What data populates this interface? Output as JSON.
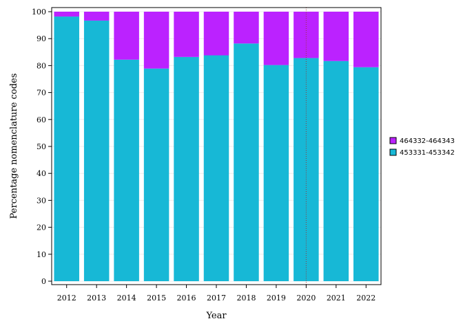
{
  "chart_data": {
    "type": "bar",
    "stacked": true,
    "xlabel": "Year",
    "ylabel": "Percentage nomenclature codes",
    "ylim": [
      0,
      100
    ],
    "yticks": [
      0,
      10,
      20,
      30,
      40,
      50,
      60,
      70,
      80,
      90,
      100
    ],
    "categories": [
      "2012",
      "2013",
      "2014",
      "2015",
      "2016",
      "2017",
      "2018",
      "2019",
      "2020",
      "2021",
      "2022"
    ],
    "series": [
      {
        "name": "453331-453342",
        "color": "#17b8d6",
        "values": [
          98.2,
          96.7,
          82.2,
          78.9,
          83.2,
          83.8,
          88.2,
          80.2,
          82.8,
          81.7,
          79.4
        ]
      },
      {
        "name": "464332-464343",
        "color": "#bb22ff",
        "values": [
          1.8,
          3.3,
          17.8,
          21.1,
          16.8,
          16.2,
          11.8,
          19.8,
          17.2,
          18.3,
          20.6
        ]
      }
    ],
    "legend_position": "right",
    "legend_order": [
      "464332-464343",
      "453331-453342"
    ],
    "grid": "light",
    "reference_line": {
      "x": "2020",
      "style": "dotted",
      "color": "#993333"
    }
  }
}
